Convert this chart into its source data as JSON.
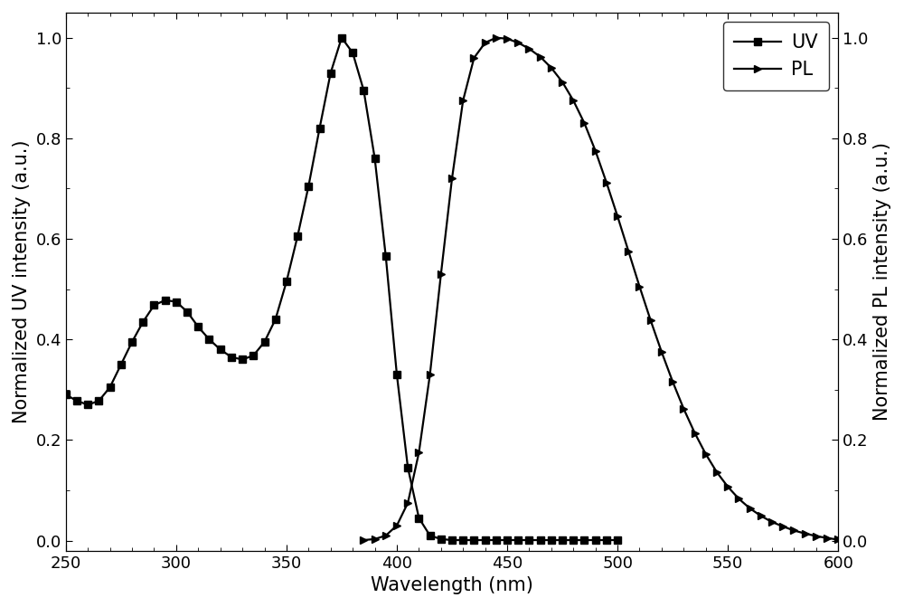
{
  "uv_x": [
    250,
    255,
    260,
    265,
    270,
    275,
    280,
    285,
    290,
    295,
    300,
    305,
    310,
    315,
    320,
    325,
    330,
    335,
    340,
    345,
    350,
    355,
    360,
    365,
    370,
    375,
    380,
    385,
    390,
    395,
    400,
    405,
    410,
    415,
    420,
    425,
    430,
    435,
    440,
    445,
    450,
    455,
    460,
    465,
    470,
    475,
    480,
    485,
    490,
    495,
    500
  ],
  "uv_y": [
    0.29,
    0.278,
    0.27,
    0.278,
    0.305,
    0.35,
    0.395,
    0.435,
    0.468,
    0.478,
    0.475,
    0.455,
    0.425,
    0.4,
    0.38,
    0.365,
    0.36,
    0.368,
    0.395,
    0.44,
    0.515,
    0.605,
    0.705,
    0.82,
    0.93,
    1.0,
    0.97,
    0.895,
    0.76,
    0.565,
    0.33,
    0.145,
    0.045,
    0.01,
    0.003,
    0.001,
    0.001,
    0.001,
    0.001,
    0.001,
    0.001,
    0.001,
    0.001,
    0.001,
    0.001,
    0.001,
    0.001,
    0.001,
    0.001,
    0.001,
    0.001
  ],
  "pl_x": [
    385,
    390,
    395,
    400,
    405,
    410,
    415,
    420,
    425,
    430,
    435,
    440,
    445,
    450,
    455,
    460,
    465,
    470,
    475,
    480,
    485,
    490,
    495,
    500,
    505,
    510,
    515,
    520,
    525,
    530,
    535,
    540,
    545,
    550,
    555,
    560,
    565,
    570,
    575,
    580,
    585,
    590,
    595,
    600
  ],
  "pl_y": [
    0.001,
    0.003,
    0.01,
    0.03,
    0.075,
    0.175,
    0.33,
    0.53,
    0.72,
    0.875,
    0.96,
    0.99,
    1.0,
    0.998,
    0.99,
    0.978,
    0.962,
    0.94,
    0.912,
    0.875,
    0.83,
    0.775,
    0.712,
    0.645,
    0.575,
    0.505,
    0.438,
    0.375,
    0.316,
    0.262,
    0.214,
    0.172,
    0.136,
    0.107,
    0.083,
    0.064,
    0.049,
    0.037,
    0.028,
    0.02,
    0.014,
    0.009,
    0.005,
    0.002
  ],
  "xlabel": "Wavelength (nm)",
  "ylabel_left": "Normalized UV intensity (a.u.)",
  "ylabel_right": "Normalized PL intensity (a.u.)",
  "xlim": [
    250,
    600
  ],
  "ylim": [
    -0.02,
    1.05
  ],
  "xticks": [
    250,
    300,
    350,
    400,
    450,
    500,
    550,
    600
  ],
  "yticks": [
    0.0,
    0.2,
    0.4,
    0.6,
    0.8,
    1.0
  ],
  "legend_uv": "UV",
  "legend_pl": "PL",
  "line_color": "#000000",
  "marker_uv": "s",
  "marker_pl": ">",
  "markersize": 6,
  "linewidth": 1.6,
  "fontsize_label": 15,
  "fontsize_tick": 13,
  "fontsize_legend": 15,
  "background_color": "#ffffff"
}
